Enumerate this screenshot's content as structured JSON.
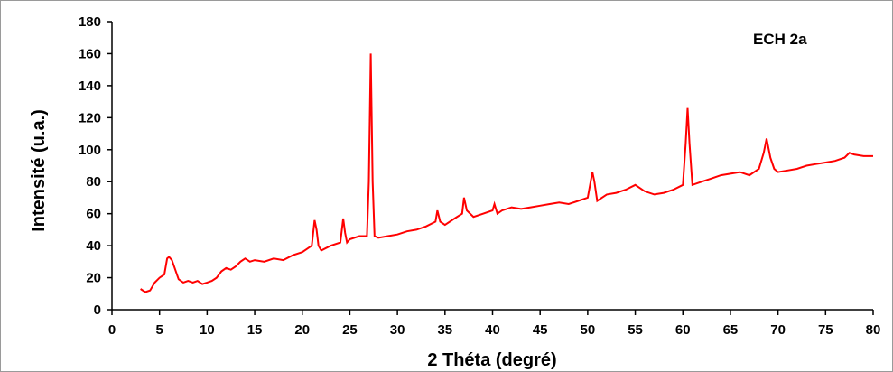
{
  "chart_data": {
    "type": "line",
    "xlabel": "2 Théta (degré)",
    "ylabel": "Intensité (u.a.)",
    "annotation": "ECH 2a",
    "xlim": [
      0,
      80
    ],
    "ylim": [
      0,
      180
    ],
    "xticks": [
      0,
      5,
      10,
      15,
      20,
      25,
      30,
      35,
      40,
      45,
      50,
      55,
      60,
      65,
      70,
      75,
      80
    ],
    "yticks": [
      0,
      20,
      40,
      60,
      80,
      100,
      120,
      140,
      160,
      180
    ],
    "grid": false,
    "color": "#ff0000",
    "series": [
      {
        "x": [
          3.0,
          3.5,
          4.0,
          4.5,
          5.0,
          5.5,
          5.8,
          6.0,
          6.3,
          6.6,
          7.0,
          7.5,
          8.0,
          8.5,
          9.0,
          9.5,
          10.0,
          10.5,
          11.0,
          11.5,
          12.0,
          12.5,
          13.0,
          13.5,
          14.0,
          14.5,
          15.0,
          16.0,
          17.0,
          18.0,
          19.0,
          20.0,
          20.5,
          21.0,
          21.3,
          21.5,
          21.7,
          22.0,
          23.0,
          24.0,
          24.3,
          24.5,
          24.7,
          25.0,
          26.0,
          26.8,
          27.0,
          27.2,
          27.4,
          27.6,
          28.0,
          29.0,
          30.0,
          31.0,
          32.0,
          33.0,
          34.0,
          34.2,
          34.5,
          35.0,
          36.0,
          36.8,
          37.0,
          37.3,
          38.0,
          39.0,
          40.0,
          40.2,
          40.5,
          41.0,
          42.0,
          43.0,
          44.0,
          45.0,
          46.0,
          47.0,
          48.0,
          49.0,
          50.0,
          50.5,
          50.7,
          51.0,
          51.5,
          52.0,
          53.0,
          54.0,
          55.0,
          55.5,
          56.0,
          57.0,
          58.0,
          59.0,
          60.0,
          60.3,
          60.5,
          60.7,
          61.0,
          62.0,
          63.0,
          64.0,
          65.0,
          66.0,
          67.0,
          68.0,
          68.5,
          68.8,
          69.2,
          69.6,
          70.0,
          71.0,
          72.0,
          73.0,
          74.0,
          75.0,
          76.0,
          77.0,
          77.5,
          78.0,
          79.0,
          80.0
        ],
        "y": [
          13,
          11,
          12,
          17,
          20,
          22,
          32,
          33,
          31,
          26,
          19,
          17,
          18,
          17,
          18,
          16,
          17,
          18,
          20,
          24,
          26,
          25,
          27,
          30,
          32,
          30,
          31,
          30,
          32,
          31,
          34,
          36,
          38,
          40,
          56,
          50,
          40,
          37,
          40,
          42,
          57,
          48,
          42,
          44,
          46,
          46,
          80,
          160,
          80,
          46,
          45,
          46,
          47,
          49,
          50,
          52,
          55,
          62,
          55,
          53,
          57,
          60,
          70,
          62,
          58,
          60,
          62,
          66,
          60,
          62,
          64,
          63,
          64,
          65,
          66,
          67,
          66,
          68,
          70,
          86,
          80,
          68,
          70,
          72,
          73,
          75,
          78,
          76,
          74,
          72,
          73,
          75,
          78,
          104,
          126,
          104,
          78,
          80,
          82,
          84,
          85,
          86,
          84,
          88,
          98,
          107,
          95,
          88,
          86,
          87,
          88,
          90,
          91,
          92,
          93,
          95,
          98,
          97,
          96,
          96
        ]
      }
    ]
  }
}
